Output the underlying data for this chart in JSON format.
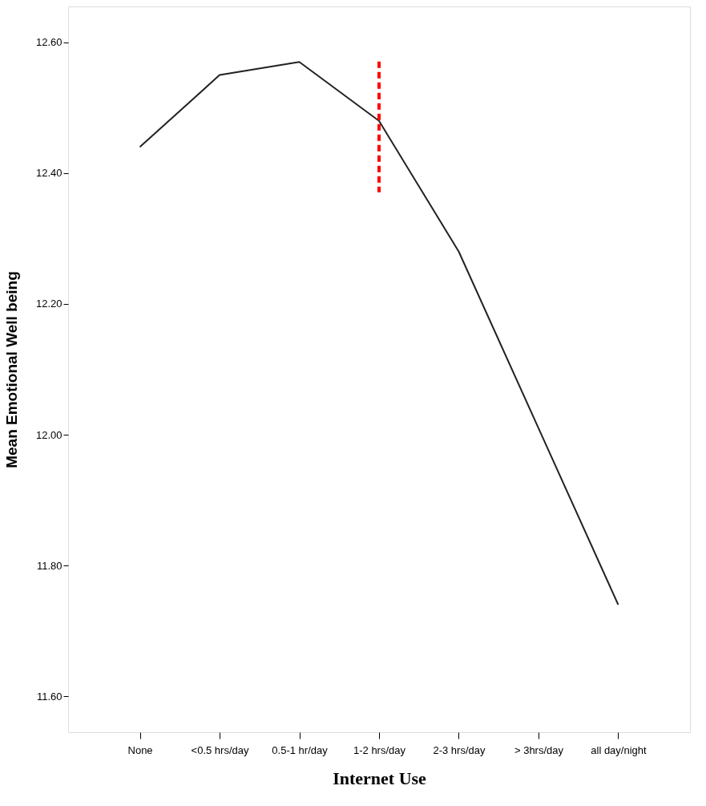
{
  "chart_data": {
    "type": "line",
    "xlabel": "Internet Use",
    "ylabel": "Mean Emotional Well being",
    "categories": [
      "None",
      "<0.5 hrs/day",
      "0.5-1 hr/day",
      "1-2 hrs/day",
      "2-3 hrs/day",
      "> 3hrs/day",
      "all day/night"
    ],
    "series": [
      {
        "color": "#222222",
        "values": [
          12.44,
          12.55,
          12.57,
          12.48,
          12.28,
          12.01,
          11.74
        ]
      }
    ],
    "ylim": [
      11.545,
      12.655
    ],
    "yticks": [
      {
        "value": 11.6,
        "label": "11.60"
      },
      {
        "value": 11.8,
        "label": "11.80"
      },
      {
        "value": 12.0,
        "label": "12.00"
      },
      {
        "value": 12.2,
        "label": "12.20"
      },
      {
        "value": 12.4,
        "label": "12.40"
      },
      {
        "value": 12.6,
        "label": "12.60"
      }
    ],
    "ref_lines": [
      {
        "axis": "x",
        "value": "1-2 hrs/day",
        "color": "#ff0000",
        "line_style": "dashed"
      }
    ],
    "grid": false,
    "marker": "none",
    "line_style": "solid"
  }
}
